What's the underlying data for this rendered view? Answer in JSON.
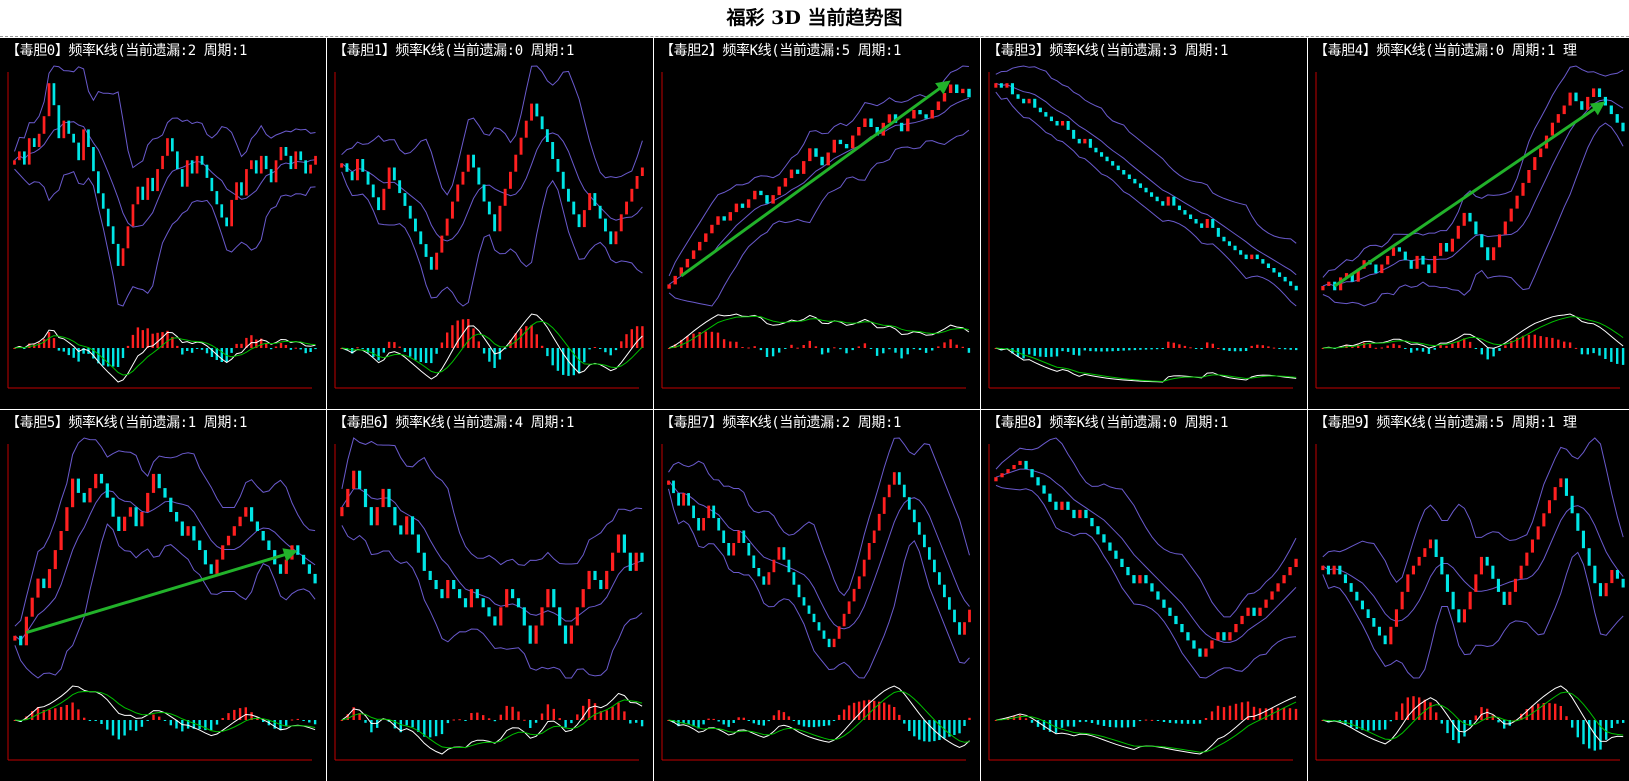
{
  "page": {
    "title": "福彩 3D 当前趋势图"
  },
  "colors": {
    "background": "#000000",
    "axis": "#c00000",
    "up_candle": "#ff2020",
    "down_candle": "#00e6e6",
    "band": "#6a5acd",
    "signal_white": "#ffffff",
    "signal_green": "#00c000",
    "arrow": "#22b22a",
    "title_text": "#ffffff"
  },
  "chart_data": [
    {
      "type": "candlestick",
      "title": "【毒胆0】频率K线(当前遗漏:2 周期:1",
      "up_trend_arrow": false,
      "closes": [
        60,
        64,
        58,
        70,
        66,
        72,
        80,
        95,
        85,
        70,
        78,
        72,
        68,
        60,
        74,
        66,
        55,
        45,
        38,
        30,
        22,
        12,
        20,
        30,
        40,
        48,
        42,
        52,
        46,
        56,
        62,
        70,
        64,
        56,
        48,
        60,
        54,
        62,
        58,
        52,
        46,
        40,
        34,
        30,
        42,
        50,
        44,
        56,
        60,
        54,
        62,
        56,
        50,
        60,
        66,
        62,
        56,
        64,
        60,
        54,
        58,
        62
      ]
    },
    {
      "type": "candlestick",
      "title": "【毒胆1】频率K线(当前遗漏:0 周期:1",
      "up_trend_arrow": false,
      "closes": [
        62,
        58,
        54,
        64,
        58,
        52,
        46,
        40,
        50,
        60,
        54,
        48,
        42,
        36,
        30,
        24,
        18,
        12,
        20,
        28,
        36,
        44,
        52,
        58,
        66,
        60,
        52,
        44,
        38,
        30,
        42,
        50,
        58,
        66,
        74,
        82,
        90,
        84,
        78,
        72,
        64,
        58,
        50,
        44,
        38,
        32,
        40,
        48,
        42,
        36,
        30,
        24,
        30,
        38,
        44,
        50,
        56,
        60
      ]
    },
    {
      "type": "candlestick",
      "title": "【毒胆2】频率K线(当前遗漏:5 周期:1",
      "up_trend_arrow": true,
      "closes": [
        6,
        10,
        14,
        18,
        22,
        26,
        30,
        34,
        38,
        36,
        40,
        44,
        42,
        46,
        50,
        48,
        44,
        48,
        52,
        56,
        60,
        58,
        64,
        70,
        66,
        62,
        68,
        74,
        72,
        70,
        76,
        80,
        84,
        80,
        76,
        82,
        86,
        82,
        78,
        84,
        88,
        86,
        84,
        88,
        92,
        96,
        100,
        96,
        98,
        94
      ]
    },
    {
      "type": "candlestick",
      "title": "【毒胆3】频率K线(当前遗漏:3 周期:1",
      "up_trend_arrow": false,
      "closes": [
        95,
        93,
        95,
        90,
        88,
        86,
        88,
        84,
        82,
        80,
        78,
        76,
        78,
        74,
        70,
        68,
        70,
        66,
        64,
        62,
        60,
        58,
        56,
        54,
        52,
        50,
        48,
        46,
        44,
        42,
        40,
        44,
        40,
        38,
        36,
        34,
        32,
        30,
        34,
        30,
        26,
        24,
        22,
        20,
        18,
        16,
        18,
        16,
        14,
        12,
        10,
        8,
        6,
        4,
        2
      ]
    },
    {
      "type": "candlestick",
      "title": "【毒胆4】频率K线(当前遗漏:0 周期:1 理",
      "up_trend_arrow": true,
      "closes": [
        8,
        10,
        6,
        12,
        14,
        10,
        16,
        20,
        18,
        14,
        18,
        22,
        26,
        24,
        20,
        16,
        22,
        18,
        14,
        22,
        28,
        24,
        30,
        36,
        42,
        38,
        32,
        26,
        20,
        26,
        32,
        38,
        44,
        50,
        56,
        62,
        68,
        72,
        78,
        84,
        88,
        92,
        98,
        94,
        90,
        96,
        100,
        96,
        92,
        88,
        84,
        80
      ]
    },
    {
      "type": "candlestick",
      "title": "【毒胆5】频率K线(当前遗漏:1 周期:1",
      "up_trend_arrow": true,
      "closes": [
        20,
        16,
        28,
        36,
        44,
        40,
        48,
        56,
        64,
        74,
        86,
        80,
        76,
        82,
        88,
        84,
        78,
        70,
        64,
        70,
        74,
        66,
        72,
        80,
        88,
        82,
        78,
        72,
        68,
        62,
        66,
        60,
        56,
        50,
        46,
        52,
        58,
        62,
        66,
        70,
        74,
        68,
        64,
        60,
        56,
        50,
        46,
        52,
        58,
        54,
        50,
        46,
        42
      ]
    },
    {
      "type": "candlestick",
      "title": "【毒胆6】频率K线(当前遗漏:4 周期:1",
      "up_trend_arrow": false,
      "closes": [
        40,
        44,
        48,
        44,
        40,
        36,
        40,
        44,
        40,
        36,
        34,
        38,
        34,
        30,
        26,
        24,
        22,
        20,
        24,
        22,
        20,
        18,
        22,
        20,
        18,
        16,
        14,
        18,
        22,
        20,
        18,
        14,
        10,
        14,
        18,
        22,
        18,
        14,
        10,
        14,
        18,
        22,
        26,
        24,
        22,
        26,
        30,
        34,
        30,
        26,
        30,
        28
      ]
    },
    {
      "type": "candlestick",
      "title": "【毒胆7】频率K线(当前遗漏:2 周期:1",
      "up_trend_arrow": false,
      "closes": [
        86,
        80,
        74,
        80,
        74,
        68,
        62,
        68,
        74,
        68,
        62,
        56,
        50,
        56,
        62,
        56,
        50,
        44,
        40,
        36,
        42,
        48,
        54,
        48,
        42,
        36,
        30,
        26,
        22,
        18,
        14,
        10,
        6,
        10,
        16,
        22,
        28,
        34,
        40,
        48,
        56,
        62,
        70,
        78,
        84,
        90,
        84,
        78,
        72,
        66,
        60,
        54,
        48,
        42,
        36,
        30,
        24,
        18,
        12,
        18,
        24
      ]
    },
    {
      "type": "candlestick",
      "title": "【毒胆8】频率K线(当前遗漏:0 周期:1",
      "up_trend_arrow": false,
      "closes": [
        90,
        92,
        94,
        96,
        98,
        94,
        90,
        86,
        82,
        78,
        74,
        78,
        74,
        70,
        74,
        70,
        66,
        62,
        58,
        54,
        50,
        46,
        42,
        38,
        42,
        38,
        34,
        30,
        26,
        22,
        18,
        14,
        10,
        6,
        2,
        6,
        10,
        14,
        10,
        14,
        18,
        22,
        26,
        22,
        26,
        30,
        34,
        38,
        42,
        46,
        50
      ]
    },
    {
      "type": "candlestick",
      "title": "【毒胆9】频率K线(当前遗漏:5 周期:1 理",
      "up_trend_arrow": false,
      "closes": [
        58,
        54,
        58,
        54,
        50,
        46,
        42,
        38,
        34,
        30,
        26,
        22,
        30,
        38,
        46,
        54,
        58,
        62,
        66,
        70,
        62,
        54,
        46,
        38,
        32,
        38,
        46,
        54,
        62,
        58,
        52,
        46,
        40,
        46,
        52,
        58,
        64,
        70,
        76,
        82,
        88,
        94,
        98,
        90,
        82,
        74,
        66,
        58,
        50,
        44,
        50,
        56,
        52,
        48
      ]
    }
  ]
}
